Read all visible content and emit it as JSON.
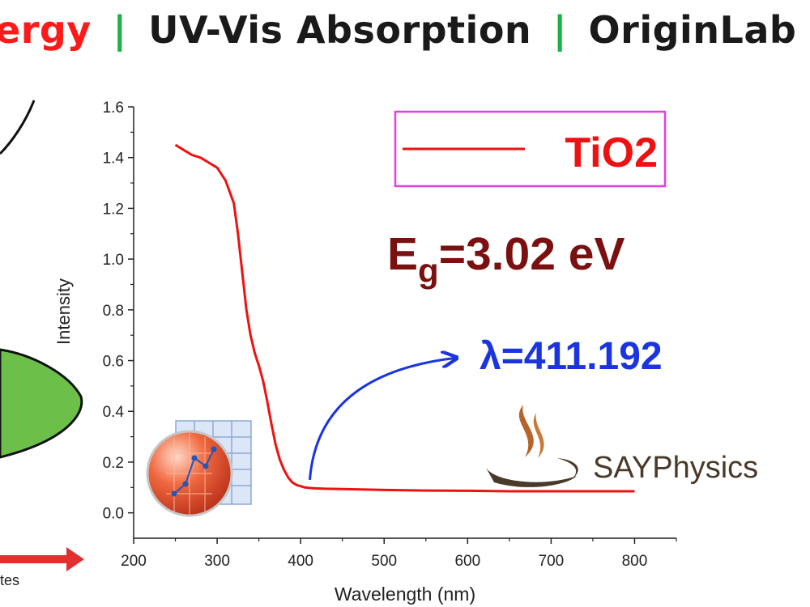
{
  "title": {
    "segments": [
      "ergy",
      "UV-Vis Absorption",
      "OriginLab"
    ],
    "separator": "|",
    "colors": {
      "first": "#ff1a1a",
      "rest": "#1a1a1a",
      "separator": "#1db14a"
    }
  },
  "left_diagram": {
    "partial_label": "tes",
    "blob_color": "#6cc04a",
    "arrow_color": "#e03030"
  },
  "chart_data": {
    "type": "line",
    "xlabel": "Wavelength (nm)",
    "ylabel": "Intensity",
    "xlim": [
      200,
      850
    ],
    "ylim": [
      -0.1,
      1.6
    ],
    "x_ticks": [
      "200",
      "300",
      "400",
      "500",
      "600",
      "700",
      "800"
    ],
    "y_ticks": [
      "0.0",
      "0.2",
      "0.4",
      "0.6",
      "0.8",
      "1.0",
      "1.2",
      "1.4",
      "1.6"
    ],
    "series": [
      {
        "name": "TiO2",
        "color": "#ee1111",
        "x": [
          250,
          260,
          270,
          280,
          290,
          300,
          310,
          320,
          325,
          330,
          335,
          340,
          345,
          350,
          355,
          360,
          365,
          370,
          375,
          380,
          385,
          390,
          395,
          400,
          405,
          410,
          415,
          420,
          430,
          450,
          500,
          550,
          600,
          650,
          700,
          750,
          800
        ],
        "y": [
          1.45,
          1.43,
          1.41,
          1.4,
          1.38,
          1.36,
          1.31,
          1.22,
          1.1,
          0.95,
          0.8,
          0.7,
          0.63,
          0.58,
          0.52,
          0.44,
          0.35,
          0.27,
          0.21,
          0.17,
          0.14,
          0.12,
          0.11,
          0.105,
          0.1,
          0.098,
          0.097,
          0.096,
          0.095,
          0.094,
          0.09,
          0.088,
          0.087,
          0.085,
          0.085,
          0.085,
          0.085
        ]
      }
    ],
    "legend": {
      "label": "TiO2",
      "position": "top-right",
      "border_color": "#e83ee0"
    },
    "annotations": {
      "eg_main": "E",
      "eg_sub": "g",
      "eg_value": "=3.02 eV",
      "eg_color": "#7a1010",
      "lambda_text": "λ=411.192",
      "lambda_color": "#1a35e0",
      "arrow_from": [
        411,
        0.13
      ],
      "arrow_to": [
        585,
        0.61
      ]
    }
  },
  "watermark": {
    "text": "SAYPhysics",
    "flame_color": "#b5652a",
    "text_color": "#4a3a2a"
  }
}
